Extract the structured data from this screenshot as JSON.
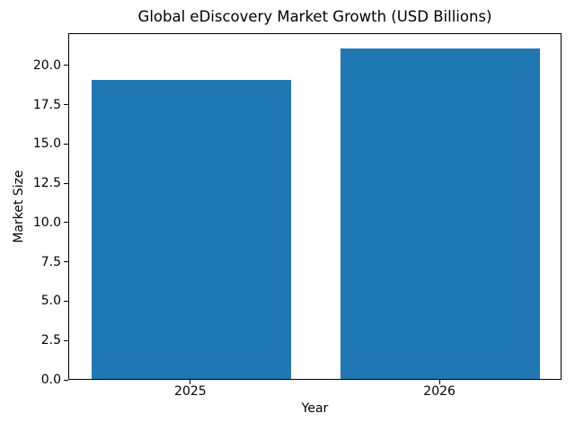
{
  "chart_data": {
    "type": "bar",
    "title": "Global eDiscovery Market Growth (USD Billions)",
    "xlabel": "Year",
    "ylabel": "Market Size",
    "categories": [
      "2025",
      "2026"
    ],
    "values": [
      19,
      21
    ],
    "ytick_labels": [
      "0.0",
      "2.5",
      "5.0",
      "7.5",
      "10.0",
      "12.5",
      "15.0",
      "17.5",
      "20.0"
    ],
    "yticks": [
      0.0,
      2.5,
      5.0,
      7.5,
      10.0,
      12.5,
      15.0,
      17.5,
      20.0
    ],
    "ylim": [
      0,
      22.05
    ],
    "xlim": [
      -0.49,
      1.49
    ],
    "bar_width": 0.8,
    "bar_color": "#1f77b4",
    "background_color": "#ffffff",
    "spine_color": "#000000",
    "text_color": "#000000",
    "grid": false,
    "legend_position": "none"
  }
}
